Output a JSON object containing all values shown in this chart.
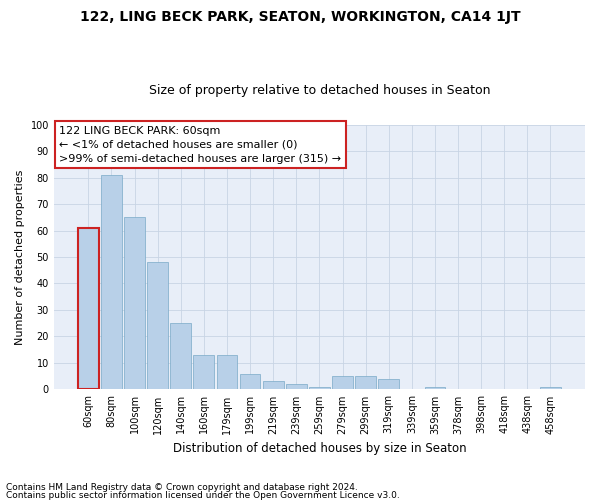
{
  "title": "122, LING BECK PARK, SEATON, WORKINGTON, CA14 1JT",
  "subtitle": "Size of property relative to detached houses in Seaton",
  "xlabel": "Distribution of detached houses by size in Seaton",
  "ylabel": "Number of detached properties",
  "categories": [
    "60sqm",
    "80sqm",
    "100sqm",
    "120sqm",
    "140sqm",
    "160sqm",
    "179sqm",
    "199sqm",
    "219sqm",
    "239sqm",
    "259sqm",
    "279sqm",
    "299sqm",
    "319sqm",
    "339sqm",
    "359sqm",
    "378sqm",
    "398sqm",
    "418sqm",
    "438sqm",
    "458sqm"
  ],
  "values": [
    61,
    81,
    65,
    48,
    25,
    13,
    13,
    6,
    3,
    2,
    1,
    5,
    5,
    4,
    0,
    1,
    0,
    0,
    0,
    0,
    1
  ],
  "bar_color": "#b8d0e8",
  "bar_edge_color": "#7aaac8",
  "highlight_bar_index": 0,
  "highlight_color": "#cc2222",
  "annotation_text": "122 LING BECK PARK: 60sqm\n← <1% of detached houses are smaller (0)\n>99% of semi-detached houses are larger (315) →",
  "annotation_box_color": "#ffffff",
  "annotation_box_edge": "#cc2222",
  "ylim": [
    0,
    100
  ],
  "yticks": [
    0,
    10,
    20,
    30,
    40,
    50,
    60,
    70,
    80,
    90,
    100
  ],
  "grid_color": "#c8d4e4",
  "background_color": "#e8eef8",
  "footer_line1": "Contains HM Land Registry data © Crown copyright and database right 2024.",
  "footer_line2": "Contains public sector information licensed under the Open Government Licence v3.0.",
  "title_fontsize": 10,
  "subtitle_fontsize": 9,
  "tick_fontsize": 7,
  "ylabel_fontsize": 8,
  "xlabel_fontsize": 8.5,
  "footer_fontsize": 6.5,
  "annotation_fontsize": 8
}
